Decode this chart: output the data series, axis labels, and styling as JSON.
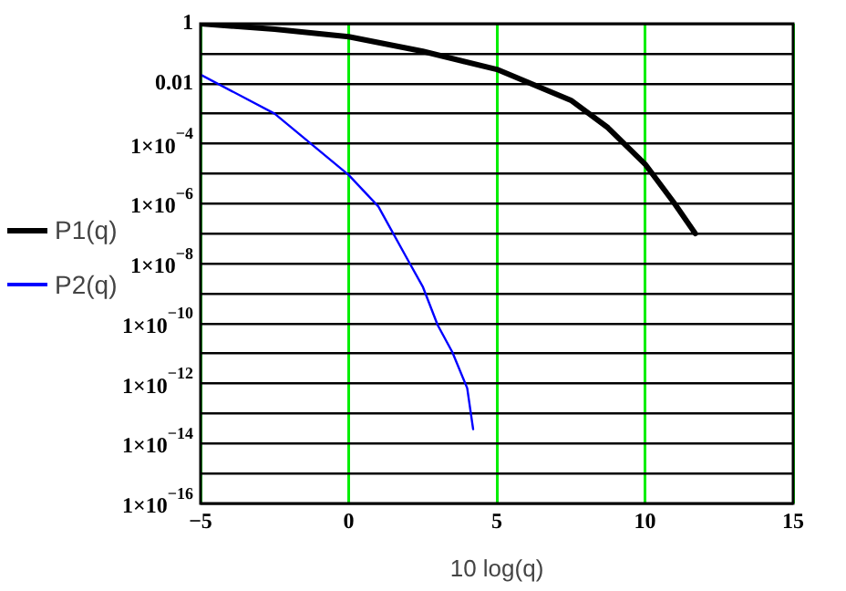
{
  "chart_data": {
    "type": "line",
    "xlabel": "10 log(q)",
    "legend": "left",
    "grid": true,
    "log": "y",
    "marker": "none",
    "line_style": "solid",
    "xlim": [
      -5,
      15
    ],
    "xticks": [
      {
        "value": -5,
        "label": "−5"
      },
      0,
      5,
      10,
      15
    ],
    "ylim": [
      1e-16,
      1
    ],
    "yticks": [
      {
        "value": 1e-16,
        "label": "1×10$^{−16}$"
      },
      {
        "value": 1e-15,
        "label": null
      },
      {
        "value": 1e-14,
        "label": "1×10$^{−14}$"
      },
      {
        "value": 1e-13,
        "label": null
      },
      {
        "value": 1e-12,
        "label": "1×10$^{−12}$"
      },
      {
        "value": 1e-11,
        "label": null
      },
      {
        "value": 1e-10,
        "label": "1×10$^{−10}$"
      },
      {
        "value": 1e-09,
        "label": null
      },
      {
        "value": 1e-08,
        "label": "1×10$^{−8}$"
      },
      {
        "value": 1e-07,
        "label": null
      },
      {
        "value": 1e-06,
        "label": "1×10$^{−6}$"
      },
      {
        "value": 1e-05,
        "label": null
      },
      {
        "value": 0.0001,
        "label": "1×10$^{−4}$"
      },
      {
        "value": 0.001,
        "label": null
      },
      0.01,
      {
        "value": 0.1,
        "label": null
      },
      1
    ],
    "series": [
      {
        "name": "P1(q)",
        "color": "#000000",
        "x": [
          -5,
          -2.5,
          0,
          2.5,
          5,
          7.5,
          8.75,
          10,
          11,
          11.7
        ],
        "values": [
          1,
          0.66,
          0.37,
          0.12,
          0.03,
          0.0028,
          0.00034,
          2.1e-05,
          1e-06,
          1e-07
        ]
      },
      {
        "name": "P2(q)",
        "color": "#0000ff",
        "x": [
          -5,
          -2.5,
          0,
          1,
          2,
          2.5,
          3,
          3.5,
          4,
          4.2
        ],
        "values": [
          0.02,
          0.001,
          9e-06,
          8e-07,
          1.3e-08,
          1.7e-09,
          9e-11,
          1.1e-11,
          7e-13,
          3e-14
        ]
      }
    ]
  }
}
